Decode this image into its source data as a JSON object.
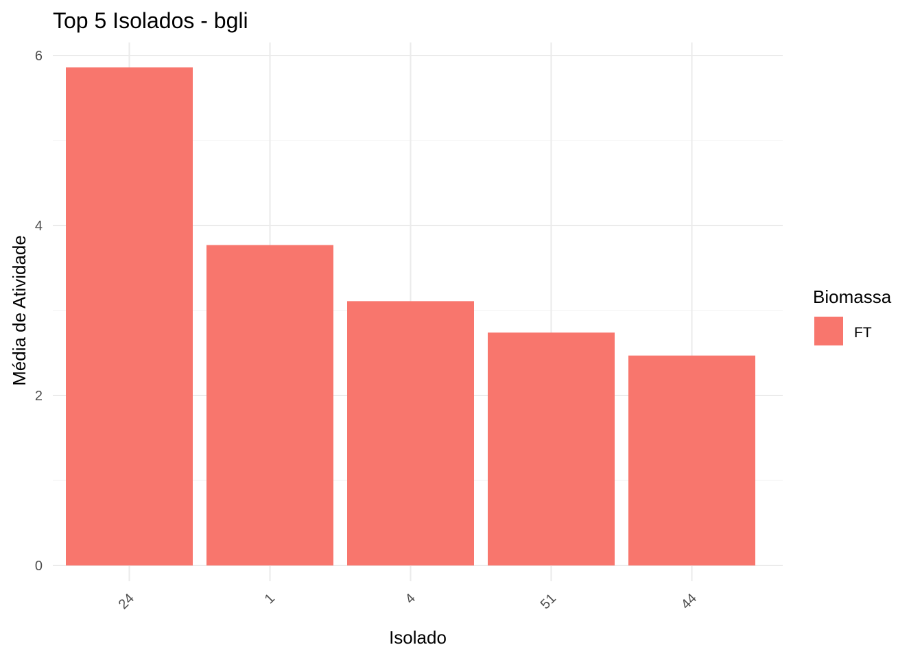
{
  "chart_data": {
    "type": "bar",
    "title": "Top 5 Isolados - bgli",
    "xlabel": "Isolado",
    "ylabel": "Média de Atividade",
    "categories": [
      "24",
      "1",
      "4",
      "51",
      "44"
    ],
    "series": [
      {
        "name": "FT",
        "values": [
          5.86,
          3.77,
          3.11,
          2.74,
          2.47
        ]
      }
    ],
    "ylim": [
      0,
      6
    ],
    "yticks": [
      "0",
      "2",
      "4",
      "6"
    ],
    "grid": true,
    "legend": {
      "title": "Biomassa",
      "position": "right",
      "entries": [
        "FT"
      ]
    },
    "x_tick_rotation": "45 degrees",
    "colors": {
      "FT": "#F8766D"
    }
  }
}
